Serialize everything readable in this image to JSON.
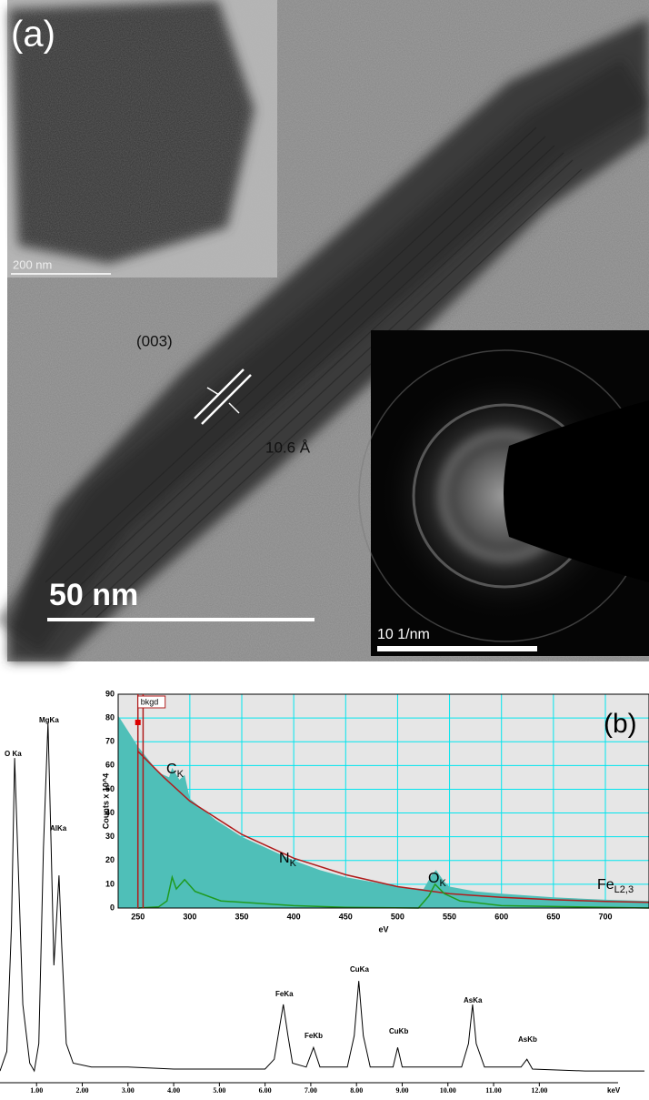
{
  "panel_a": {
    "label": "(a)",
    "inset_scale": "200 nm",
    "plane": "(003)",
    "spacing": "10.6 Å",
    "scale": "50 nm",
    "diffraction_scale": "10 1/nm"
  },
  "panel_b": {
    "label": "(b)",
    "eds": {
      "type": "line",
      "color": "#000000",
      "x_unit": "keV",
      "xlim": [
        0.2,
        14.4
      ],
      "ylim": [
        0,
        100
      ],
      "xticks": [
        {
          "value": 1,
          "label": "1.00"
        },
        {
          "value": 2,
          "label": "2.00"
        },
        {
          "value": 3,
          "label": "3.00"
        },
        {
          "value": 4,
          "label": "4.00"
        },
        {
          "value": 5,
          "label": "5.00"
        },
        {
          "value": 6,
          "label": "6.00"
        },
        {
          "value": 7,
          "label": "7.00"
        },
        {
          "value": 8,
          "label": "8.00"
        },
        {
          "value": 9,
          "label": "9.00"
        },
        {
          "value": 10,
          "label": "10.00"
        },
        {
          "value": 11,
          "label": "11.00"
        },
        {
          "value": 12,
          "label": "12.00"
        }
      ],
      "peak_labels": [
        "O Ka",
        "MgKa",
        "AlKa",
        "FeKa",
        "FeKb",
        "CuKa",
        "CuKb",
        "AsKa",
        "AsKb"
      ],
      "x": [
        0.2,
        0.35,
        0.45,
        0.52,
        0.6,
        0.7,
        0.85,
        0.95,
        1.05,
        1.15,
        1.25,
        1.32,
        1.38,
        1.43,
        1.49,
        1.55,
        1.65,
        1.8,
        2.2,
        3,
        4,
        5,
        6,
        6.2,
        6.3,
        6.4,
        6.5,
        6.6,
        6.9,
        7.06,
        7.2,
        7.8,
        7.95,
        8.05,
        8.15,
        8.3,
        8.8,
        8.9,
        9.0,
        10.3,
        10.45,
        10.54,
        10.62,
        10.8,
        11.6,
        11.73,
        11.85,
        13,
        14.3
      ],
      "values": [
        3,
        8,
        40,
        83,
        55,
        20,
        5,
        3,
        10,
        60,
        92,
        60,
        30,
        40,
        53,
        35,
        10,
        5,
        4,
        4,
        3.5,
        3.5,
        3.5,
        6,
        13,
        20,
        12,
        5,
        4,
        9,
        4,
        4,
        12,
        26,
        12,
        4,
        4,
        9,
        4,
        4,
        10,
        20,
        10,
        4,
        4,
        6,
        3.5,
        3,
        3
      ]
    },
    "eels": {
      "type": "line",
      "xlabel": "eV",
      "ylabel": "Counts x 10^4",
      "xlim": [
        231,
        742
      ],
      "ylim": [
        0,
        90
      ],
      "xticks": [
        250,
        300,
        350,
        400,
        450,
        500,
        550,
        600,
        650,
        700
      ],
      "yticks": [
        0,
        10,
        20,
        30,
        40,
        50,
        60,
        70,
        80,
        90
      ],
      "grid": true,
      "grid_color": "#00e5ee",
      "background_label": "bkgd",
      "background_window": [
        250,
        255
      ],
      "edges": [
        {
          "main": "C",
          "sub": "K"
        },
        {
          "main": "N",
          "sub": "K"
        },
        {
          "main": "O",
          "sub": "K"
        },
        {
          "main": "Fe",
          "sub": "L2,3"
        }
      ],
      "series": [
        {
          "kind": "area",
          "color": "#4fbfb8",
          "x": [
            231,
            250,
            270,
            280,
            283,
            290,
            295,
            300,
            325,
            350,
            375,
            400,
            425,
            450,
            475,
            500,
            525,
            533,
            537,
            545,
            550,
            575,
            600,
            650,
            700,
            742
          ],
          "values": [
            81,
            68,
            57,
            55,
            59,
            54,
            56,
            46,
            37,
            30,
            25,
            20,
            16,
            13,
            11,
            9,
            8,
            14,
            16,
            11,
            9,
            7,
            6,
            4.5,
            3.5,
            3
          ]
        },
        {
          "kind": "line",
          "color": "#b01c1c",
          "x": [
            250,
            275,
            300,
            350,
            400,
            450,
            500,
            550,
            600,
            650,
            700,
            742
          ],
          "values": [
            66,
            55,
            45,
            31,
            21,
            14,
            9,
            6,
            4.5,
            3.5,
            2.8,
            2.4
          ]
        },
        {
          "kind": "line",
          "color": "#1f9a1f",
          "x": [
            250,
            270,
            278,
            283,
            287,
            295,
            305,
            330,
            400,
            450,
            520,
            530,
            536,
            545,
            560,
            600,
            700,
            742
          ],
          "values": [
            0,
            0.5,
            3,
            13,
            8,
            12,
            7,
            3,
            1,
            0.3,
            0,
            5,
            10,
            6,
            3,
            1,
            0.3,
            0
          ]
        }
      ]
    }
  }
}
